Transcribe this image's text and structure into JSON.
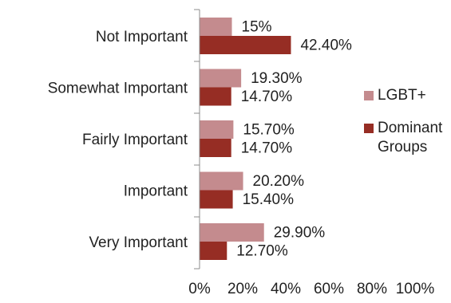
{
  "chart_data": {
    "type": "bar",
    "orientation": "horizontal",
    "title": "",
    "xlabel": "",
    "ylabel": "",
    "categories": [
      "Not Important",
      "Somewhat Important",
      "Fairly Important",
      "Important",
      "Very Important"
    ],
    "series": [
      {
        "name": "LGBT+",
        "color": "#c48b8e",
        "values": [
          15,
          19.3,
          15.7,
          20.2,
          29.9
        ],
        "labels": [
          "15%",
          "19.30%",
          "15.70%",
          "20.20%",
          "29.90%"
        ]
      },
      {
        "name": "Dominant Groups",
        "color": "#962d24",
        "values": [
          42.4,
          14.7,
          14.7,
          15.4,
          12.7
        ],
        "labels": [
          "42.40%",
          "14.70%",
          "14.70%",
          "15.40%",
          "12.70%"
        ]
      }
    ],
    "xlim": [
      0,
      100
    ],
    "x_ticks": [
      {
        "value": 0,
        "label": "0%"
      },
      {
        "value": 20,
        "label": "20%"
      },
      {
        "value": 40,
        "label": "40%"
      },
      {
        "value": 60,
        "label": "60%"
      },
      {
        "value": 80,
        "label": "80%"
      },
      {
        "value": 100,
        "label": "100%"
      }
    ],
    "legend": {
      "placement": "right",
      "entries": [
        {
          "lines": [
            "LGBT+"
          ],
          "color": "#c48b8e"
        },
        {
          "lines": [
            "Dominant",
            "Groups"
          ],
          "color": "#962d24"
        }
      ]
    },
    "grid": false
  }
}
